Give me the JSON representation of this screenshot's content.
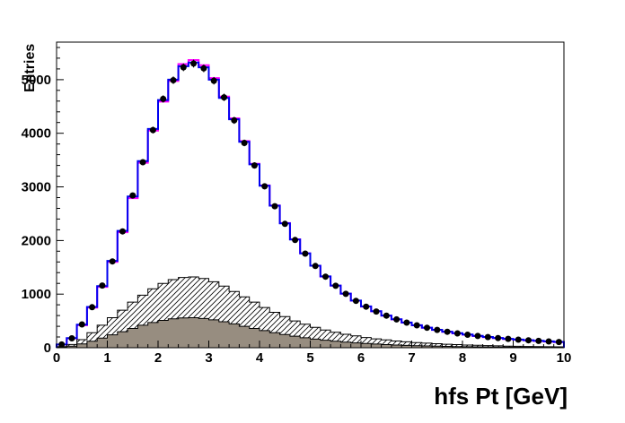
{
  "window": {
    "background": "#ffffff"
  },
  "chart_data": {
    "type": "line",
    "style": "root-step-histogram",
    "title": "",
    "xlabel": "hfs Pt [GeV]",
    "ylabel": "Entries",
    "xlim": [
      0,
      10
    ],
    "ylim": [
      0,
      5700
    ],
    "x_ticks": [
      0,
      1,
      2,
      3,
      4,
      5,
      6,
      7,
      8,
      9,
      10
    ],
    "y_ticks": [
      0,
      1000,
      2000,
      3000,
      4000,
      5000
    ],
    "x_minor_tick_step": 0.2,
    "y_minor_tick_step": 200,
    "grid": false,
    "legend": null,
    "bin_width": 0.2,
    "x": [
      0.1,
      0.3,
      0.5,
      0.7,
      0.9,
      1.1,
      1.3,
      1.5,
      1.7,
      1.9,
      2.1,
      2.3,
      2.5,
      2.7,
      2.9,
      3.1,
      3.3,
      3.5,
      3.7,
      3.9,
      4.1,
      4.3,
      4.5,
      4.7,
      4.9,
      5.1,
      5.3,
      5.5,
      5.7,
      5.9,
      6.1,
      6.3,
      6.5,
      6.7,
      6.9,
      7.1,
      7.3,
      7.5,
      7.7,
      7.9,
      8.1,
      8.3,
      8.5,
      8.7,
      8.9,
      9.1,
      9.3,
      9.5,
      9.7,
      9.9
    ],
    "series": [
      {
        "name": "background-hatched-histogram",
        "draw": "step-hatched",
        "line_color": "#000000",
        "fill": "hatch",
        "values": [
          20,
          60,
          150,
          280,
          420,
          560,
          700,
          850,
          980,
          1100,
          1200,
          1270,
          1310,
          1320,
          1290,
          1230,
          1150,
          1050,
          950,
          850,
          750,
          660,
          580,
          500,
          440,
          380,
          330,
          290,
          250,
          220,
          190,
          165,
          145,
          125,
          110,
          95,
          85,
          75,
          65,
          58,
          50,
          45,
          40,
          35,
          30,
          27,
          24,
          21,
          19,
          17
        ]
      },
      {
        "name": "background-gray-filled-histogram",
        "draw": "step-filled",
        "line_color": "#000000",
        "fill": "#978d80",
        "values": [
          10,
          30,
          70,
          120,
          180,
          240,
          300,
          360,
          420,
          470,
          510,
          540,
          555,
          560,
          545,
          520,
          485,
          445,
          400,
          360,
          320,
          280,
          245,
          215,
          185,
          160,
          140,
          120,
          105,
          90,
          78,
          68,
          58,
          50,
          44,
          38,
          33,
          28,
          25,
          22,
          19,
          17,
          15,
          13,
          11,
          10,
          9,
          8,
          7,
          6
        ]
      },
      {
        "name": "mc-magenta-histogram",
        "draw": "step",
        "line_color": "#ff00ff",
        "values": [
          58,
          175,
          420,
          748,
          1135,
          1600,
          2155,
          2790,
          3450,
          4050,
          4590,
          4975,
          5290,
          5365,
          5270,
          5030,
          4685,
          4280,
          3855,
          3430,
          3028,
          2655,
          2325,
          2023,
          1762,
          1530,
          1328,
          1158,
          1008,
          878,
          768,
          678,
          598,
          528,
          468,
          418,
          373,
          333,
          298,
          268,
          243,
          218,
          198,
          180,
          164,
          150,
          138,
          126,
          116,
          106
        ]
      },
      {
        "name": "mc-blue-histogram",
        "draw": "step",
        "line_color": "#0000f0",
        "values": [
          60,
          180,
          430,
          760,
          1150,
          1620,
          2180,
          2820,
          3480,
          4080,
          4620,
          5000,
          5250,
          5320,
          5230,
          5000,
          4660,
          4260,
          3840,
          3420,
          3020,
          2650,
          2320,
          2020,
          1760,
          1530,
          1330,
          1160,
          1010,
          880,
          770,
          680,
          600,
          530,
          470,
          420,
          375,
          335,
          300,
          270,
          245,
          220,
          200,
          182,
          166,
          152,
          140,
          128,
          118,
          108
        ]
      },
      {
        "name": "data-points",
        "draw": "scatter",
        "marker_color": "#000000",
        "values": [
          60,
          175,
          435,
          755,
          1160,
          1610,
          2170,
          2840,
          3460,
          4060,
          4640,
          4990,
          5230,
          5300,
          5210,
          4980,
          4670,
          4240,
          3820,
          3400,
          3010,
          2640,
          2310,
          2010,
          1755,
          1525,
          1325,
          1155,
          1005,
          875,
          765,
          675,
          598,
          528,
          468,
          418,
          372,
          333,
          298,
          268,
          243,
          219,
          199,
          181,
          165,
          151,
          139,
          127,
          117,
          107
        ]
      }
    ]
  }
}
